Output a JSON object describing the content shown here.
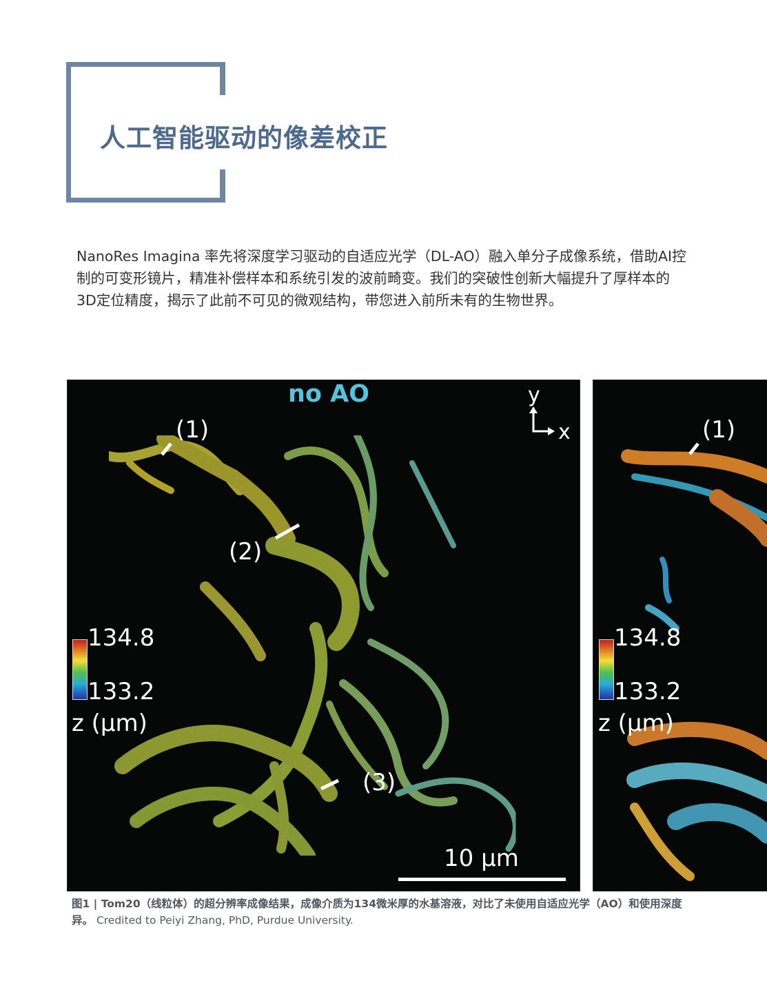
{
  "title": "人工智能驱动的像差校正",
  "intro": "NanoRes Imagina 率先将深度学习驱动的自适应光学（DL-AO）融入单分子成像系统，借助AI控制的可变形镜片，精准补偿样本和系统引发的波前畸变。我们的突破性创新大幅提升了厚样本的3D定位精度，揭示了此前不可见的微观结构，带您进入前所未有的生物世界。",
  "figure": {
    "left_panel": {
      "label": "no AO",
      "axis_y": "y",
      "axis_x": "x",
      "markers": [
        "(1)",
        "(2)",
        "(3)"
      ],
      "colorbar_max": "134.8",
      "colorbar_min": "133.2",
      "colorbar_unit": "z (μm)",
      "scale_label": "10 μm"
    },
    "right_panel": {
      "markers": [
        "(1)"
      ],
      "colorbar_max": "134.8",
      "colorbar_min": "133.2",
      "colorbar_unit": "z (μm)"
    }
  },
  "caption": {
    "bold_line1": "图1 | Tom20（线粒体）的超分辨率成像结果，成像介质为134微米厚的水基溶液，对比了未使用自适应光学（AO）和使用深度",
    "bold_line2": "异。",
    "credit": "Credited to Peiyi Zhang, PhD, Purdue University."
  }
}
